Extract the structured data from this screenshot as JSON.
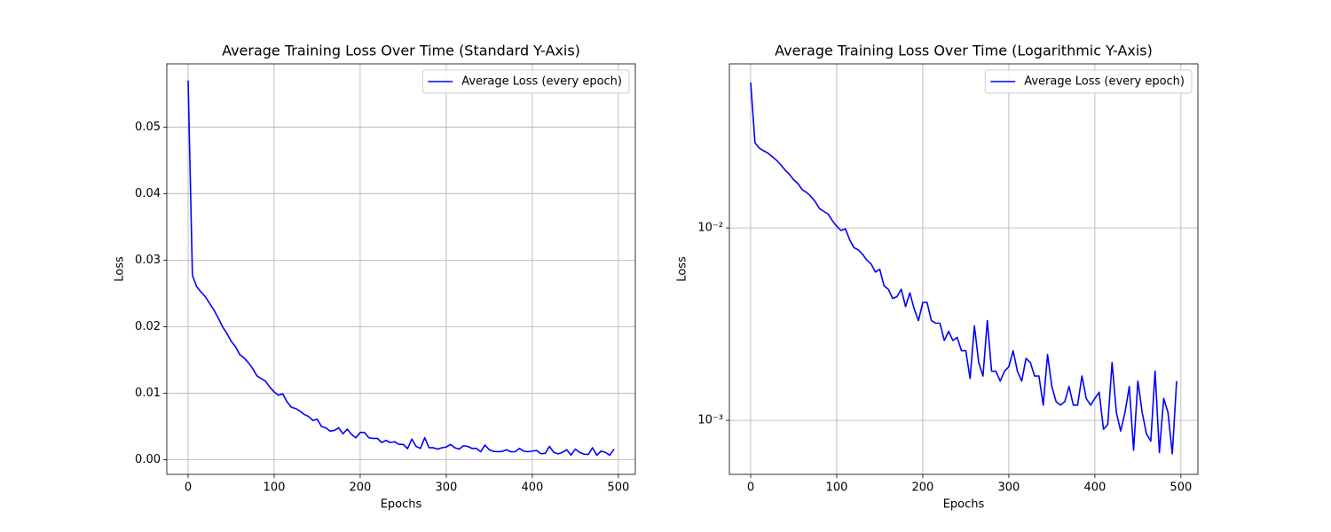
{
  "chart_data": [
    {
      "type": "line",
      "title": "Average Training Loss Over Time (Standard Y-Axis)",
      "x_label": "Epochs",
      "y_label": "Loss",
      "x": [
        0,
        5,
        10,
        15,
        20,
        25,
        30,
        35,
        40,
        45,
        50,
        55,
        60,
        65,
        70,
        75,
        80,
        85,
        90,
        95,
        100,
        105,
        110,
        115,
        120,
        125,
        130,
        135,
        140,
        145,
        150,
        155,
        160,
        165,
        170,
        175,
        180,
        185,
        190,
        195,
        200,
        205,
        210,
        215,
        220,
        225,
        230,
        235,
        240,
        245,
        250,
        255,
        260,
        265,
        270,
        275,
        280,
        285,
        290,
        295,
        300,
        305,
        310,
        315,
        320,
        325,
        330,
        335,
        340,
        345,
        350,
        355,
        360,
        365,
        370,
        375,
        380,
        385,
        390,
        395,
        400,
        405,
        410,
        415,
        420,
        425,
        430,
        435,
        440,
        445,
        450,
        455,
        460,
        465,
        470,
        475,
        480,
        485,
        490,
        495
      ],
      "series": [
        {
          "name": "Average Loss (every epoch)",
          "color": "#0000ff",
          "values": [
            0.057,
            0.0277,
            0.026,
            0.0252,
            0.0245,
            0.0235,
            0.0225,
            0.0213,
            0.02,
            0.019,
            0.0178,
            0.017,
            0.0158,
            0.0153,
            0.0146,
            0.0137,
            0.0126,
            0.0122,
            0.0118,
            0.0109,
            0.0102,
            0.0097,
            0.0099,
            0.0087,
            0.0079,
            0.0077,
            0.0073,
            0.0068,
            0.0065,
            0.0059,
            0.0061,
            0.005,
            0.0048,
            0.0043,
            0.0044,
            0.0048,
            0.0039,
            0.0046,
            0.0038,
            0.0033,
            0.0041,
            0.0041,
            0.0033,
            0.0032,
            0.0032,
            0.0026,
            0.0029,
            0.0026,
            0.0027,
            0.0023,
            0.0023,
            0.00165,
            0.0031,
            0.002,
            0.0017,
            0.0033,
            0.0018,
            0.0018,
            0.0016,
            0.0018,
            0.0019,
            0.0023,
            0.0018,
            0.0016,
            0.0021,
            0.002,
            0.0017,
            0.0017,
            0.0012,
            0.0022,
            0.0015,
            0.00125,
            0.0012,
            0.00125,
            0.0015,
            0.0012,
            0.0012,
            0.0017,
            0.0013,
            0.0012,
            0.0013,
            0.0014,
            0.0009,
            0.00095,
            0.002,
            0.0011,
            0.00088,
            0.0011,
            0.0015,
            0.0007,
            0.0016,
            0.0011,
            0.00085,
            0.00078,
            0.0018,
            0.00068,
            0.0013,
            0.0011,
            0.00067,
            0.0016
          ]
        }
      ],
      "xlim": [
        -24.75,
        519.75
      ],
      "xticks": [
        0,
        100,
        200,
        300,
        400,
        500
      ],
      "ylim": [
        -0.0022,
        0.0595
      ],
      "yticks": [
        {
          "value": 0,
          "label": "0.00"
        },
        0.01,
        0.02,
        0.03,
        0.04,
        0.05
      ],
      "y_scale": "linear",
      "grid": true,
      "legend": "upper right"
    },
    {
      "type": "line",
      "title": "Average Training Loss Over Time (Logarithmic Y-Axis)",
      "x_label": "Epochs",
      "y_label": "Loss",
      "x": [
        0,
        5,
        10,
        15,
        20,
        25,
        30,
        35,
        40,
        45,
        50,
        55,
        60,
        65,
        70,
        75,
        80,
        85,
        90,
        95,
        100,
        105,
        110,
        115,
        120,
        125,
        130,
        135,
        140,
        145,
        150,
        155,
        160,
        165,
        170,
        175,
        180,
        185,
        190,
        195,
        200,
        205,
        210,
        215,
        220,
        225,
        230,
        235,
        240,
        245,
        250,
        255,
        260,
        265,
        270,
        275,
        280,
        285,
        290,
        295,
        300,
        305,
        310,
        315,
        320,
        325,
        330,
        335,
        340,
        345,
        350,
        355,
        360,
        365,
        370,
        375,
        380,
        385,
        390,
        395,
        400,
        405,
        410,
        415,
        420,
        425,
        430,
        435,
        440,
        445,
        450,
        455,
        460,
        465,
        470,
        475,
        480,
        485,
        490,
        495
      ],
      "series": [
        {
          "name": "Average Loss (every epoch)",
          "color": "#0000ff",
          "values": [
            0.057,
            0.0277,
            0.026,
            0.0252,
            0.0245,
            0.0235,
            0.0225,
            0.0213,
            0.02,
            0.019,
            0.0178,
            0.017,
            0.0158,
            0.0153,
            0.0146,
            0.0137,
            0.0126,
            0.0122,
            0.0118,
            0.0109,
            0.0102,
            0.0097,
            0.0099,
            0.0087,
            0.0079,
            0.0077,
            0.0073,
            0.0068,
            0.0065,
            0.0059,
            0.0061,
            0.005,
            0.0048,
            0.0043,
            0.0044,
            0.0048,
            0.0039,
            0.0046,
            0.0038,
            0.0033,
            0.0041,
            0.0041,
            0.0033,
            0.0032,
            0.0032,
            0.0026,
            0.0029,
            0.0026,
            0.0027,
            0.0023,
            0.0023,
            0.00165,
            0.0031,
            0.002,
            0.0017,
            0.0033,
            0.0018,
            0.0018,
            0.0016,
            0.0018,
            0.0019,
            0.0023,
            0.0018,
            0.0016,
            0.0021,
            0.002,
            0.0017,
            0.0017,
            0.0012,
            0.0022,
            0.0015,
            0.00125,
            0.0012,
            0.00125,
            0.0015,
            0.0012,
            0.0012,
            0.0017,
            0.0013,
            0.0012,
            0.0013,
            0.0014,
            0.0009,
            0.00095,
            0.002,
            0.0011,
            0.00088,
            0.0011,
            0.0015,
            0.0007,
            0.0016,
            0.0011,
            0.00085,
            0.00078,
            0.0018,
            0.00068,
            0.0013,
            0.0011,
            0.00067,
            0.0016
          ]
        }
      ],
      "xlim": [
        -24.75,
        519.75
      ],
      "xticks": [
        0,
        100,
        200,
        300,
        400,
        500
      ],
      "ylim": [
        0.000524,
        0.0713
      ],
      "yticks": [
        {
          "value": 0.001,
          "label": "10⁻³"
        },
        {
          "value": 0.01,
          "label": "10⁻²"
        }
      ],
      "y_scale": "log",
      "grid": true,
      "legend": "upper right"
    }
  ]
}
